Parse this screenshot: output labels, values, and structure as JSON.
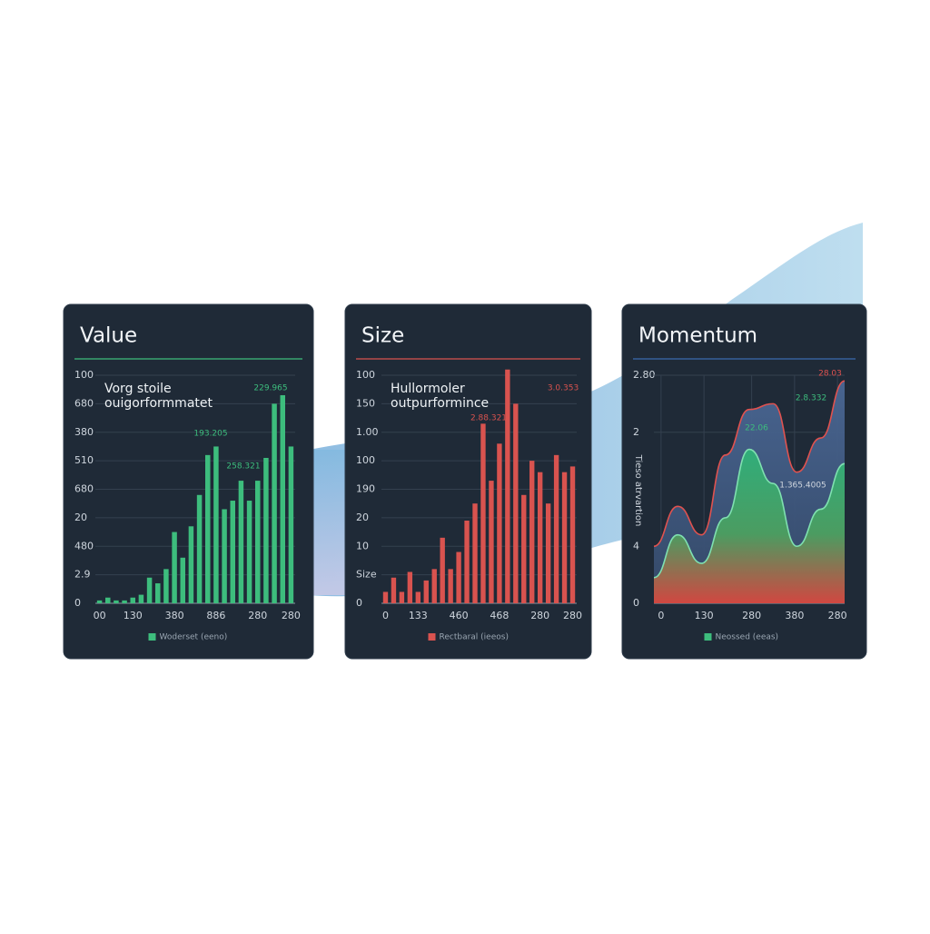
{
  "chart_data": [
    {
      "type": "bar",
      "title": "Value",
      "accent": "#3dbd7d",
      "annotation": [
        "Vorg stoile",
        "ouigorformmatet"
      ],
      "data_labels": [
        {
          "text": "229.965",
          "color": "#3dbd7d"
        },
        {
          "text": "193.205",
          "color": "#3dbd7d"
        },
        {
          "text": "258.321",
          "color": "#3dbd7d"
        }
      ],
      "categories": [
        "00",
        null,
        null,
        null,
        "130",
        null,
        null,
        null,
        null,
        "380",
        null,
        null,
        null,
        null,
        "886",
        null,
        null,
        null,
        null,
        "280",
        null,
        null,
        null,
        "280"
      ],
      "series": [
        {
          "name": "Woderset (eeno)",
          "color": "#3dbd7d",
          "values": [
            0.1,
            0.2,
            0.1,
            0.1,
            0.2,
            0.3,
            0.9,
            0.7,
            1.2,
            2.5,
            1.6,
            2.7,
            3.8,
            5.2,
            5.5,
            3.3,
            3.6,
            4.3,
            3.6,
            4.3,
            5.1,
            7.0,
            7.3,
            5.5
          ]
        }
      ],
      "ylim": [
        0,
        8
      ],
      "yticks": [
        0,
        {
          "value": 1,
          "label": "2.9"
        },
        {
          "value": 2,
          "label": "480"
        },
        {
          "value": 3,
          "label": "20"
        },
        {
          "value": 4,
          "label": "680"
        },
        {
          "value": 5,
          "label": "510"
        },
        {
          "value": 6,
          "label": "380"
        },
        {
          "value": 7,
          "label": "680"
        },
        {
          "value": 8,
          "label": "100"
        }
      ],
      "grid": true
    },
    {
      "type": "bar",
      "title": "Size",
      "accent": "#d9534f",
      "annotation": [
        "Hullormoler",
        "outpurformince"
      ],
      "data_labels": [
        {
          "text": "3.0.353",
          "color": "#d9534f"
        },
        {
          "text": "2.88.321",
          "color": "#d9534f"
        }
      ],
      "categories": [
        "0",
        null,
        null,
        null,
        "133",
        null,
        null,
        null,
        null,
        "460",
        null,
        null,
        null,
        null,
        "468",
        null,
        null,
        null,
        null,
        "280",
        null,
        null,
        null,
        "280"
      ],
      "series": [
        {
          "name": "Rectbaral (ieeos)",
          "color": "#d9534f",
          "values": [
            0.4,
            0.9,
            0.4,
            1.1,
            0.4,
            0.8,
            1.2,
            2.3,
            1.2,
            1.8,
            2.9,
            3.5,
            6.3,
            4.3,
            5.6,
            8.2,
            7.0,
            3.8,
            5.0,
            4.6,
            3.5,
            5.2,
            4.6,
            4.8
          ]
        }
      ],
      "ylim": [
        0,
        8
      ],
      "yticks": [
        0,
        {
          "value": 1,
          "label": "Size"
        },
        {
          "value": 2,
          "label": "10"
        },
        {
          "value": 3,
          "label": "20"
        },
        {
          "value": 4,
          "label": "190"
        },
        {
          "value": 5,
          "label": "100"
        },
        {
          "value": 6,
          "label": "1.00"
        },
        {
          "value": 7,
          "label": "150"
        },
        {
          "value": 8,
          "label": "100"
        }
      ],
      "grid": true
    },
    {
      "type": "area",
      "title": "Momentum",
      "accent": "#3a6bb0",
      "y_label": "Tieso atrvartion",
      "data_labels": [
        {
          "text": "28.03",
          "color": "#e0524f"
        },
        {
          "text": "2.8.332",
          "color": "#3dbd7d"
        },
        {
          "text": "22.06",
          "color": "#3dbd7d"
        },
        {
          "text": "1.365.4005",
          "color": "#cfd6de"
        }
      ],
      "x": [
        0,
        1,
        2,
        3,
        4,
        5,
        6,
        7,
        8
      ],
      "series": [
        {
          "color": "#e0524f",
          "values": [
            1.0,
            1.7,
            1.2,
            2.6,
            3.4,
            3.5,
            2.3,
            2.9,
            3.9
          ]
        },
        {
          "name": "Neossed (eeas)",
          "color": "#3dbd7d",
          "values": [
            0.45,
            1.2,
            0.7,
            1.5,
            2.7,
            2.1,
            1.0,
            1.65,
            2.45
          ]
        }
      ],
      "xlim": [
        0,
        8
      ],
      "xticks": [
        {
          "value": 0.3,
          "label": "0"
        },
        {
          "value": 2.1,
          "label": "130"
        },
        {
          "value": 4.1,
          "label": "280"
        },
        {
          "value": 5.9,
          "label": "380"
        },
        {
          "value": 7.7,
          "label": "280"
        }
      ],
      "ylim": [
        0,
        4
      ],
      "yticks": [
        0,
        {
          "value": 1,
          "label": "4"
        },
        {
          "value": 3,
          "label": "2"
        },
        {
          "value": 4,
          "label": "2.80"
        }
      ],
      "grid": true
    }
  ]
}
